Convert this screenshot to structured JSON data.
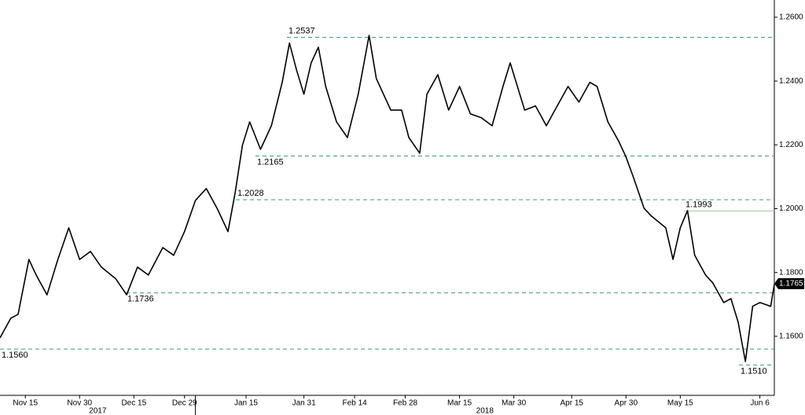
{
  "chart_data": {
    "type": "line",
    "x": [
      "2017-11-08",
      "2017-11-11",
      "2017-11-13",
      "2017-11-16",
      "2017-11-18",
      "2017-11-21",
      "2017-11-24",
      "2017-11-27",
      "2017-11-30",
      "2017-12-03",
      "2017-12-06",
      "2017-12-10",
      "2017-12-13",
      "2017-12-16",
      "2017-12-19",
      "2017-12-23",
      "2017-12-26",
      "2017-12-29",
      "2018-01-01",
      "2018-01-04",
      "2018-01-07",
      "2018-01-10",
      "2018-01-12",
      "2018-01-14",
      "2018-01-16",
      "2018-01-19",
      "2018-01-22",
      "2018-01-25",
      "2018-01-27",
      "2018-01-29",
      "2018-01-31",
      "2018-02-02",
      "2018-02-04",
      "2018-02-06",
      "2018-02-09",
      "2018-02-12",
      "2018-02-15",
      "2018-02-18",
      "2018-02-20",
      "2018-02-24",
      "2018-02-27",
      "2018-03-01",
      "2018-03-04",
      "2018-03-06",
      "2018-03-09",
      "2018-03-12",
      "2018-03-15",
      "2018-03-18",
      "2018-03-21",
      "2018-03-24",
      "2018-03-27",
      "2018-03-29",
      "2018-04-02",
      "2018-04-05",
      "2018-04-08",
      "2018-04-11",
      "2018-04-14",
      "2018-04-17",
      "2018-04-20",
      "2018-04-22",
      "2018-04-25",
      "2018-04-28",
      "2018-04-30",
      "2018-05-02",
      "2018-05-05",
      "2018-05-07",
      "2018-05-11",
      "2018-05-13",
      "2018-05-15",
      "2018-05-17",
      "2018-05-19",
      "2018-05-22",
      "2018-05-24",
      "2018-05-27",
      "2018-05-29",
      "2018-05-31",
      "2018-06-02",
      "2018-06-04",
      "2018-06-06",
      "2018-06-09",
      "2018-06-10"
    ],
    "series": [
      {
        "color": "#000000",
        "values": [
          1.1595,
          1.1657,
          1.1669,
          1.1841,
          1.1792,
          1.173,
          1.1841,
          1.194,
          1.1841,
          1.1866,
          1.1817,
          1.178,
          1.173,
          1.1817,
          1.1792,
          1.1878,
          1.1854,
          1.1928,
          1.2026,
          1.2063,
          1.2001,
          1.1928,
          1.2051,
          1.2199,
          1.2272,
          1.2186,
          1.226,
          1.2396,
          1.2519,
          1.2433,
          1.2359,
          1.2457,
          1.2506,
          1.2383,
          1.2272,
          1.2223,
          1.2359,
          1.2543,
          1.2408,
          1.2309,
          1.2309,
          1.2223,
          1.2174,
          1.2359,
          1.242,
          1.2309,
          1.2383,
          1.2297,
          1.2285,
          1.226,
          1.2383,
          1.2457,
          1.2309,
          1.2322,
          1.226,
          1.2322,
          1.2383,
          1.2334,
          1.2396,
          1.2383,
          1.2272,
          1.2211,
          1.2162,
          1.21,
          1.2001,
          1.1977,
          1.194,
          1.1841,
          1.194,
          1.1994,
          1.1854,
          1.1792,
          1.1767,
          1.1706,
          1.1718,
          1.1644,
          1.1521,
          1.1694,
          1.1706,
          1.1694,
          1.1763
        ]
      }
    ],
    "xlim": [
      "2017-11-08",
      "2018-06-10"
    ],
    "xticks": [
      {
        "value": "2017-11-15",
        "label": "Nov 15"
      },
      {
        "value": "2017-11-30",
        "label": "Nov 30"
      },
      {
        "value": "2017-12-15",
        "label": "Dec 15"
      },
      {
        "value": "2017-12-29",
        "label": "Dec 29"
      },
      {
        "value": "2018-01-15",
        "label": "Jan 15"
      },
      {
        "value": "2018-01-31",
        "label": "Jan 31"
      },
      {
        "value": "2018-02-14",
        "label": "Feb 14"
      },
      {
        "value": "2018-02-28",
        "label": "Feb 28"
      },
      {
        "value": "2018-03-15",
        "label": "Mar 15"
      },
      {
        "value": "2018-03-30",
        "label": "Mar 30"
      },
      {
        "value": "2018-04-15",
        "label": "Apr 15"
      },
      {
        "value": "2018-04-30",
        "label": "Apr 30"
      },
      {
        "value": "2018-05-15",
        "label": "May 15"
      },
      {
        "value": "2018-06-06",
        "label": "Jun 6"
      }
    ],
    "years": [
      "2017",
      "2018"
    ],
    "ylim": [
      1.1415,
      1.2654
    ],
    "yticks": [
      {
        "value": 1.16,
        "label": "1.1600"
      },
      {
        "value": 1.18,
        "label": "1.1800"
      },
      {
        "value": 1.2,
        "label": "1.2000"
      },
      {
        "value": 1.22,
        "label": "1.2200"
      },
      {
        "value": 1.24,
        "label": "1.2400"
      },
      {
        "value": 1.26,
        "label": "1.2600"
      }
    ],
    "last_value": {
      "value": 1.1765,
      "label": "1.1765"
    },
    "levels": [
      {
        "value": 1.2537,
        "label": "1.2537",
        "color": "#3a9a8a"
      },
      {
        "value": 1.2165,
        "label": "1.2165",
        "color": "#3a9a8a"
      },
      {
        "value": 1.2028,
        "label": "1.2028",
        "color": "#3a9a8a"
      },
      {
        "value": 1.1993,
        "label": "1.1993",
        "color": "#9ccc9c"
      },
      {
        "value": 1.1736,
        "label": "1.1736",
        "color": "#3a9a8a"
      },
      {
        "value": 1.156,
        "label": "1.1560",
        "color": "#3a9a8a"
      },
      {
        "value": 1.151,
        "label": "1.1510",
        "color": "#3a9a8a"
      }
    ]
  }
}
